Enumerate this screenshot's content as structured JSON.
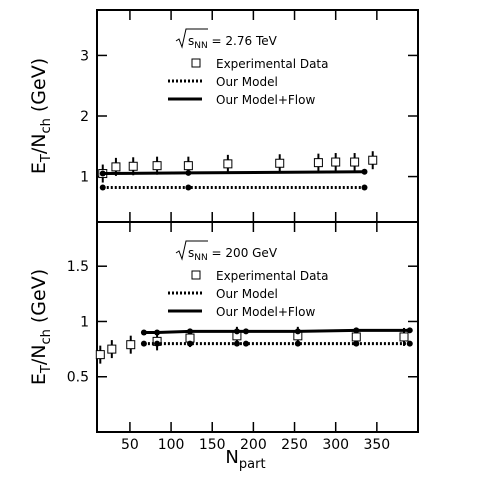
{
  "chart_data": [
    {
      "type": "scatter",
      "energy": {
        "symbol": "s",
        "sub": "NN",
        "rest": " = 2.76 TeV"
      },
      "ylabel": {
        "main": "E",
        "sub1": "T",
        "mid": "/N",
        "sub2": "ch",
        "rest": " (GeV)"
      },
      "xlim": [
        10,
        400
      ],
      "ylim": [
        0.25,
        3.75
      ],
      "yticks": [
        1,
        2,
        3
      ],
      "series": [
        {
          "name": "Experimental Data",
          "style": "square",
          "color": "#000000",
          "x": [
            17,
            33,
            54,
            83,
            121,
            169,
            232,
            279,
            300,
            323,
            345
          ],
          "values": [
            1.05,
            1.16,
            1.17,
            1.18,
            1.18,
            1.21,
            1.22,
            1.23,
            1.24,
            1.24,
            1.27
          ]
        },
        {
          "name": "Our Model",
          "style": "dotted",
          "color": "#000000",
          "x": [
            17,
            121,
            335
          ],
          "values": [
            0.82,
            0.82,
            0.82
          ]
        },
        {
          "name": "Our Model+Flow",
          "style": "solid",
          "color": "#000000",
          "x": [
            17,
            121,
            335
          ],
          "values": [
            1.05,
            1.06,
            1.08
          ]
        }
      ]
    },
    {
      "type": "scatter",
      "energy": {
        "symbol": "s",
        "sub": "NN",
        "rest": " = 200 GeV"
      },
      "ylabel": {
        "main": "E",
        "sub1": "T",
        "mid": "/N",
        "sub2": "ch",
        "rest": " (GeV)"
      },
      "xlabel": {
        "main": "N",
        "sub": "part"
      },
      "xlim": [
        10,
        400
      ],
      "ylim": [
        0,
        1.9
      ],
      "yticks": [
        0.5,
        1,
        1.5
      ],
      "xticks": [
        50,
        100,
        150,
        200,
        250,
        300,
        350
      ],
      "series": [
        {
          "name": "Experimental Data",
          "style": "square",
          "color": "#000000",
          "x": [
            14,
            28,
            51,
            83,
            123,
            180,
            254,
            325,
            383
          ],
          "values": [
            0.7,
            0.75,
            0.79,
            0.82,
            0.85,
            0.87,
            0.87,
            0.86,
            0.86
          ]
        },
        {
          "name": "Our Model",
          "style": "dotted",
          "color": "#000000",
          "x": [
            67,
            83,
            123,
            180,
            191,
            254,
            325,
            390
          ],
          "values": [
            0.8,
            0.8,
            0.8,
            0.8,
            0.8,
            0.8,
            0.8,
            0.8
          ]
        },
        {
          "name": "Our Model+Flow",
          "style": "solid",
          "color": "#000000",
          "x": [
            67,
            83,
            123,
            180,
            191,
            254,
            325,
            390
          ],
          "values": [
            0.9,
            0.9,
            0.91,
            0.91,
            0.91,
            0.91,
            0.92,
            0.92
          ]
        }
      ]
    }
  ]
}
